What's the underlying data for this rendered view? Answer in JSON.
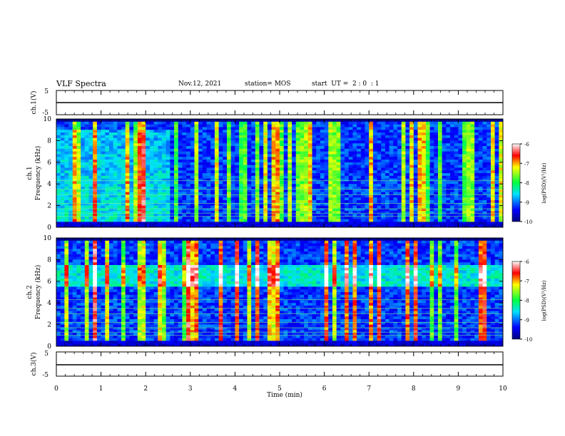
{
  "header": {
    "title": "VLF Spectra",
    "date": "Nov.12, 2021",
    "station": "station= MOS",
    "start_ut": "start  UT =  2 : 0  : 1"
  },
  "colorbar": {
    "ticks": [
      "-6",
      "-7",
      "-8",
      "-9",
      "-10"
    ],
    "label": "log(PSD)(V²/Hz)",
    "range": [
      -10,
      -6
    ]
  },
  "chart_data": [
    {
      "type": "line",
      "panel": "ch.1",
      "ylabel": "ch.1(V)",
      "ylim": [
        -5,
        5
      ],
      "yticks": [
        "5",
        "-5"
      ],
      "x": [
        0,
        10
      ],
      "series": [
        {
          "values": [
            0,
            0
          ]
        }
      ]
    },
    {
      "type": "heatmap",
      "panel": "ch.1",
      "ylabel": "ch.1\nFrequency (kHz)",
      "xlim": [
        0,
        10
      ],
      "ylim": [
        0,
        10
      ],
      "yticks": [
        "0",
        "2",
        "4",
        "6",
        "8",
        "10"
      ],
      "zlabel": "log(PSD)(V²/Hz)",
      "zlim": [
        -10,
        -6
      ]
    },
    {
      "type": "heatmap",
      "panel": "ch.2",
      "ylabel": "ch.2\nFrequency (kHz)",
      "xlim": [
        0,
        10
      ],
      "ylim": [
        0,
        10
      ],
      "yticks": [
        "0",
        "2",
        "4",
        "6",
        "8",
        "10"
      ],
      "zlabel": "log(PSD)(V²/Hz)",
      "zlim": [
        -10,
        -6
      ]
    },
    {
      "type": "line",
      "panel": "ch.3",
      "ylabel": "ch.3(V)",
      "ylim": [
        -5,
        5
      ],
      "yticks": [
        "5",
        "-5"
      ],
      "x": [
        0,
        10
      ],
      "series": [
        {
          "values": [
            0,
            0
          ]
        }
      ]
    }
  ],
  "xaxis": {
    "label": "Time  (min)",
    "ticks": [
      "0",
      "1",
      "2",
      "3",
      "4",
      "5",
      "6",
      "7",
      "8",
      "9",
      "10"
    ]
  }
}
